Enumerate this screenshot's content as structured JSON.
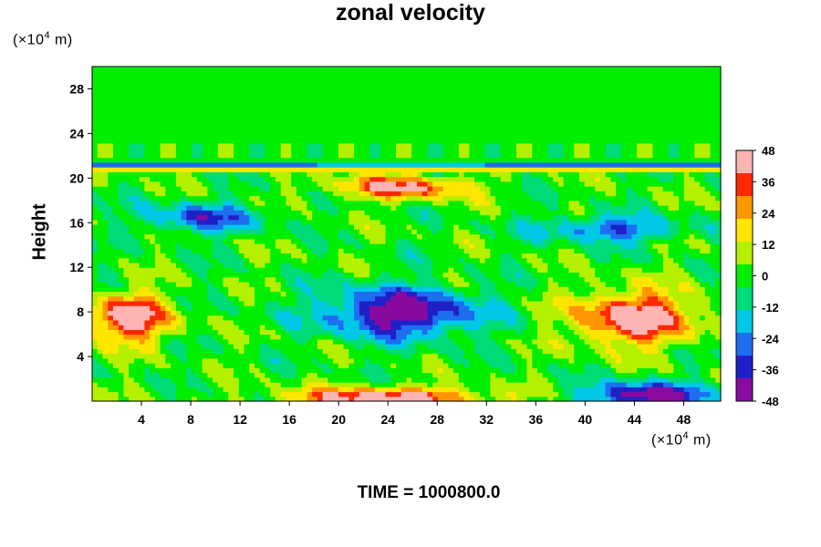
{
  "chart_data": {
    "type": "heatmap",
    "title": "zonal velocity",
    "xlabel": "",
    "ylabel": "Height",
    "y_unit": "(×10",
    "y_unit_exp": "4",
    "y_unit_tail": " m)",
    "x_unit": "(×10",
    "x_unit_exp": "4",
    "x_unit_tail": " m)",
    "xlim": [
      0,
      51
    ],
    "ylim": [
      0,
      30
    ],
    "x_ticks": [
      4,
      8,
      12,
      16,
      20,
      24,
      28,
      32,
      36,
      40,
      44,
      48
    ],
    "y_ticks": [
      4,
      8,
      12,
      16,
      20,
      24,
      28
    ],
    "colorbar": {
      "ticks": [
        48,
        36,
        24,
        12,
        0,
        -12,
        -24,
        -36,
        -48
      ],
      "range": [
        -48,
        48
      ],
      "palette": [
        "#8a0aa0",
        "#2020c8",
        "#1e6ef0",
        "#00c8e6",
        "#00dc78",
        "#00ee00",
        "#b4f000",
        "#ffe600",
        "#ff9600",
        "#ff2800",
        "#ffb4b4"
      ]
    },
    "field_features": [
      {
        "kind": "negative",
        "x": 25,
        "y": 8,
        "rx": 6.5,
        "ry": 2.3,
        "value": -48
      },
      {
        "kind": "negative",
        "x": 45,
        "y": 0.5,
        "rx": 5,
        "ry": 1.3,
        "value": -48
      },
      {
        "kind": "positive",
        "x": 24,
        "y": 0.3,
        "rx": 8,
        "ry": 1.0,
        "value": 48
      },
      {
        "kind": "positive",
        "x": 3,
        "y": 7.5,
        "rx": 3.5,
        "ry": 2.2,
        "value": 48
      },
      {
        "kind": "positive",
        "x": 44,
        "y": 7.5,
        "rx": 5,
        "ry": 2.5,
        "value": 48
      },
      {
        "kind": "positive",
        "x": 25,
        "y": 19.2,
        "rx": 5.5,
        "ry": 1.1,
        "value": 40
      },
      {
        "kind": "negative",
        "x": 9,
        "y": 16.5,
        "rx": 5,
        "ry": 1.4,
        "value": -30
      },
      {
        "kind": "negative",
        "x": 42,
        "y": 15.5,
        "rx": 6,
        "ry": 1.2,
        "value": -30
      }
    ]
  },
  "footer": {
    "time_label": "TIME = 1000800.0"
  }
}
